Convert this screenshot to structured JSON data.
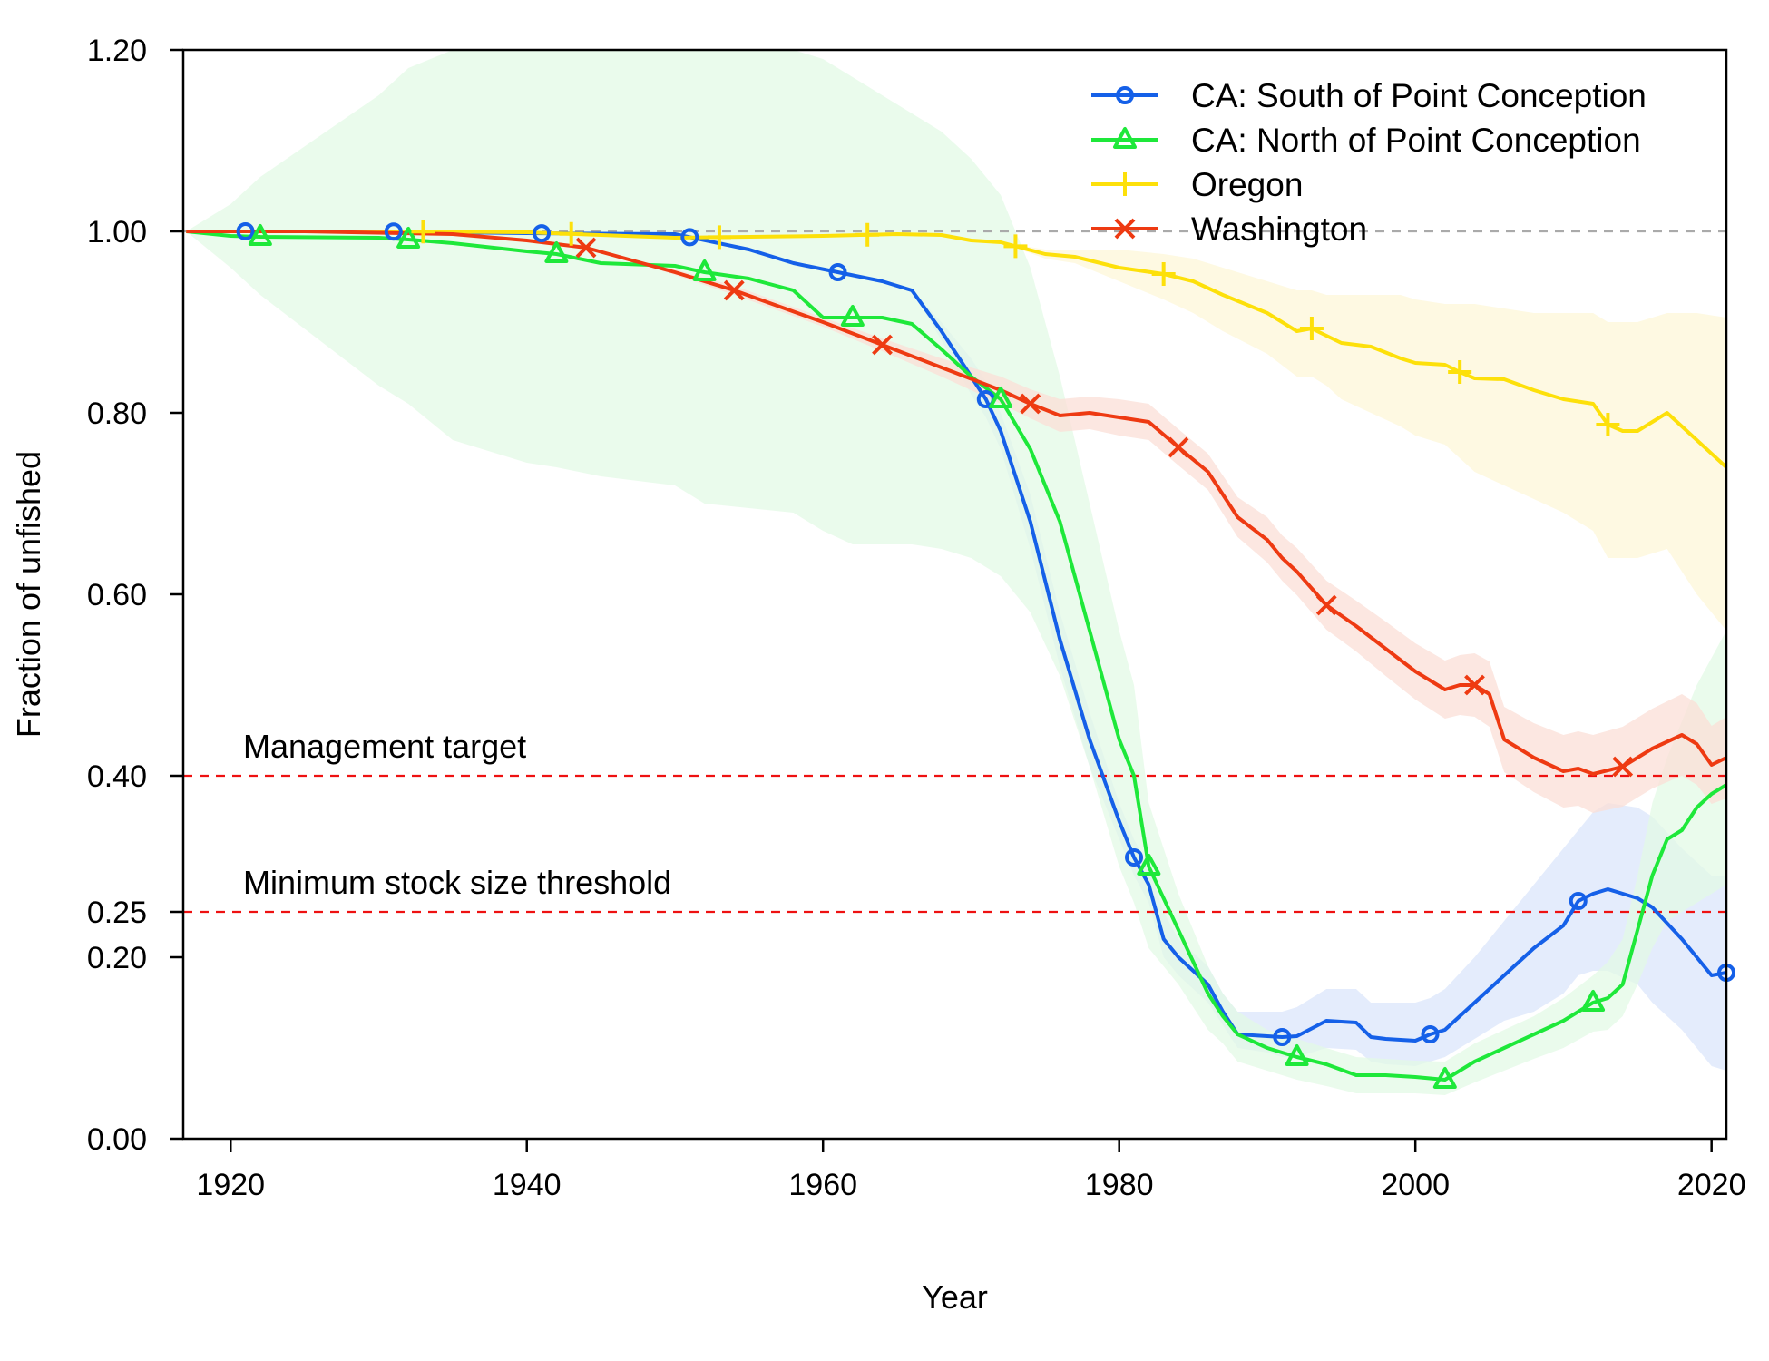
{
  "chart_data": {
    "type": "line",
    "title": "",
    "xlabel": "Year",
    "ylabel": "Fraction of unfished",
    "xlim": [
      1916.8,
      2021
    ],
    "ylim": [
      0,
      1.2
    ],
    "x_ticks": [
      1920,
      1940,
      1960,
      1980,
      2000,
      2020
    ],
    "x_tick_labels": [
      "1920",
      "1940",
      "1960",
      "1980",
      "2000",
      "2020"
    ],
    "y_ticks": [
      0,
      0.2,
      0.25,
      0.4,
      0.6,
      0.8,
      1.0,
      1.2
    ],
    "y_tick_labels": [
      "0.00",
      "0.20",
      "0.25",
      "0.40",
      "0.60",
      "0.80",
      "1.00",
      "1.20"
    ],
    "legend_position": "top-right",
    "reference_lines": [
      {
        "name": "unfished",
        "y": 1.0,
        "color": "#aaaaaa",
        "label": ""
      },
      {
        "name": "management-target",
        "y": 0.4,
        "color": "#ee1111",
        "label": "Management target"
      },
      {
        "name": "minimum-stock-size-threshold",
        "y": 0.25,
        "color": "#ee1111",
        "label": "Minimum stock size threshold"
      }
    ],
    "series": [
      {
        "name": "CA: South of Point Conception",
        "color": "#1560e8",
        "band_color": "#dbe6fb",
        "marker": "circle",
        "markers_x": [
          1921,
          1931,
          1941,
          1951,
          1961,
          1971,
          1981,
          1991,
          2001,
          2011,
          2021
        ],
        "x": [
          1917,
          1920,
          1930,
          1940,
          1950,
          1955,
          1958,
          1961,
          1964,
          1966,
          1968,
          1970,
          1971,
          1972,
          1974,
          1976,
          1978,
          1980,
          1981,
          1982,
          1983,
          1984,
          1986,
          1987,
          1988,
          1990,
          1991,
          1992,
          1994,
          1996,
          1997,
          1998,
          2000,
          2001,
          2002,
          2004,
          2006,
          2008,
          2010,
          2011,
          2012,
          2013,
          2015,
          2016,
          2018,
          2020,
          2021
        ],
        "y": [
          1.0,
          1.0,
          1.0,
          0.998,
          0.997,
          0.98,
          0.965,
          0.955,
          0.945,
          0.935,
          0.89,
          0.84,
          0.815,
          0.78,
          0.68,
          0.55,
          0.44,
          0.35,
          0.31,
          0.28,
          0.22,
          0.2,
          0.17,
          0.14,
          0.115,
          0.113,
          0.112,
          0.113,
          0.13,
          0.128,
          0.112,
          0.11,
          0.108,
          0.115,
          0.12,
          0.15,
          0.18,
          0.21,
          0.235,
          0.262,
          0.27,
          0.275,
          0.265,
          0.255,
          0.22,
          0.18,
          0.183
        ],
        "band_upper": [
          1.0,
          1.0,
          1.0,
          0.998,
          0.997,
          0.98,
          0.965,
          0.955,
          0.945,
          0.935,
          0.9,
          0.86,
          0.835,
          0.8,
          0.71,
          0.58,
          0.47,
          0.37,
          0.33,
          0.3,
          0.25,
          0.22,
          0.19,
          0.16,
          0.14,
          0.14,
          0.14,
          0.145,
          0.165,
          0.165,
          0.15,
          0.15,
          0.15,
          0.155,
          0.165,
          0.2,
          0.24,
          0.28,
          0.32,
          0.34,
          0.36,
          0.37,
          0.365,
          0.355,
          0.32,
          0.29,
          0.29
        ],
        "band_lower": [
          1.0,
          1.0,
          1.0,
          0.998,
          0.997,
          0.98,
          0.965,
          0.955,
          0.945,
          0.935,
          0.88,
          0.82,
          0.795,
          0.76,
          0.65,
          0.52,
          0.41,
          0.33,
          0.29,
          0.26,
          0.2,
          0.18,
          0.15,
          0.125,
          0.1,
          0.095,
          0.09,
          0.09,
          0.1,
          0.098,
          0.085,
          0.082,
          0.08,
          0.085,
          0.09,
          0.11,
          0.13,
          0.14,
          0.16,
          0.18,
          0.185,
          0.185,
          0.17,
          0.15,
          0.12,
          0.08,
          0.075
        ]
      },
      {
        "name": "CA: North of Point Conception",
        "color": "#1ee83a",
        "band_color": "#e3f9e6",
        "marker": "triangle",
        "markers_x": [
          1922,
          1932,
          1942,
          1952,
          1962,
          1972,
          1982,
          1992,
          2002,
          2012
        ],
        "x": [
          1917,
          1920,
          1922,
          1930,
          1932,
          1935,
          1940,
          1942,
          1945,
          1950,
          1952,
          1955,
          1958,
          1960,
          1962,
          1964,
          1966,
          1968,
          1970,
          1972,
          1974,
          1976,
          1978,
          1980,
          1981,
          1982,
          1984,
          1986,
          1987,
          1988,
          1990,
          1992,
          1994,
          1996,
          1998,
          2000,
          2002,
          2004,
          2006,
          2008,
          2010,
          2012,
          2013,
          2014,
          2015,
          2016,
          2017,
          2018,
          2019,
          2020,
          2021
        ],
        "y": [
          1.0,
          0.995,
          0.994,
          0.993,
          0.991,
          0.987,
          0.978,
          0.975,
          0.965,
          0.962,
          0.955,
          0.948,
          0.935,
          0.905,
          0.905,
          0.905,
          0.898,
          0.87,
          0.84,
          0.815,
          0.76,
          0.68,
          0.56,
          0.44,
          0.4,
          0.3,
          0.23,
          0.16,
          0.135,
          0.115,
          0.1,
          0.09,
          0.082,
          0.07,
          0.07,
          0.068,
          0.065,
          0.085,
          0.1,
          0.115,
          0.13,
          0.15,
          0.155,
          0.17,
          0.23,
          0.29,
          0.33,
          0.34,
          0.365,
          0.38,
          0.39
        ],
        "band_upper": [
          1.0,
          1.03,
          1.06,
          1.15,
          1.18,
          1.2,
          1.21,
          1.21,
          1.21,
          1.21,
          1.21,
          1.21,
          1.2,
          1.19,
          1.17,
          1.15,
          1.13,
          1.11,
          1.08,
          1.04,
          0.96,
          0.84,
          0.7,
          0.56,
          0.5,
          0.37,
          0.27,
          0.19,
          0.16,
          0.14,
          0.12,
          0.11,
          0.1,
          0.09,
          0.088,
          0.086,
          0.085,
          0.105,
          0.12,
          0.135,
          0.155,
          0.18,
          0.195,
          0.22,
          0.29,
          0.37,
          0.42,
          0.46,
          0.5,
          0.53,
          0.56
        ],
        "band_lower": [
          1.0,
          0.96,
          0.93,
          0.83,
          0.81,
          0.77,
          0.745,
          0.74,
          0.73,
          0.72,
          0.7,
          0.695,
          0.69,
          0.67,
          0.655,
          0.655,
          0.655,
          0.65,
          0.64,
          0.62,
          0.58,
          0.51,
          0.41,
          0.3,
          0.26,
          0.21,
          0.17,
          0.12,
          0.105,
          0.085,
          0.075,
          0.065,
          0.058,
          0.05,
          0.05,
          0.05,
          0.048,
          0.062,
          0.075,
          0.088,
          0.1,
          0.118,
          0.12,
          0.135,
          0.17,
          0.21,
          0.24,
          0.25,
          0.26,
          0.27,
          0.28
        ]
      },
      {
        "name": "Oregon",
        "color": "#fde00a",
        "band_color": "#fdf7d8",
        "marker": "plus",
        "markers_x": [
          1933,
          1943,
          1953,
          1963,
          1973,
          1983,
          1993,
          2003,
          2013
        ],
        "x": [
          1917,
          1925,
          1930,
          1940,
          1950,
          1960,
          1965,
          1968,
          1970,
          1972,
          1975,
          1977,
          1980,
          1983,
          1985,
          1987,
          1990,
          1992,
          1993,
          1994,
          1995,
          1997,
          1999,
          2000,
          2002,
          2003,
          2004,
          2006,
          2008,
          2010,
          2012,
          2013,
          2014,
          2015,
          2017,
          2019,
          2021
        ],
        "y": [
          1.0,
          1.0,
          1.0,
          0.999,
          0.993,
          0.995,
          0.997,
          0.996,
          0.99,
          0.988,
          0.975,
          0.972,
          0.96,
          0.953,
          0.945,
          0.93,
          0.91,
          0.89,
          0.893,
          0.885,
          0.877,
          0.873,
          0.86,
          0.855,
          0.853,
          0.845,
          0.838,
          0.837,
          0.825,
          0.815,
          0.81,
          0.787,
          0.78,
          0.78,
          0.8,
          0.77,
          0.74
        ],
        "band_upper": [
          1.0,
          1.0,
          1.0,
          0.999,
          0.993,
          0.995,
          0.997,
          0.996,
          0.99,
          0.988,
          0.98,
          0.98,
          0.98,
          0.975,
          0.97,
          0.96,
          0.945,
          0.935,
          0.935,
          0.93,
          0.93,
          0.93,
          0.93,
          0.925,
          0.92,
          0.92,
          0.92,
          0.915,
          0.91,
          0.91,
          0.91,
          0.9,
          0.9,
          0.9,
          0.91,
          0.91,
          0.905
        ],
        "band_lower": [
          1.0,
          1.0,
          1.0,
          0.999,
          0.993,
          0.995,
          0.997,
          0.996,
          0.99,
          0.988,
          0.97,
          0.965,
          0.945,
          0.925,
          0.91,
          0.89,
          0.865,
          0.84,
          0.84,
          0.83,
          0.815,
          0.8,
          0.785,
          0.775,
          0.765,
          0.75,
          0.735,
          0.72,
          0.705,
          0.69,
          0.67,
          0.64,
          0.64,
          0.64,
          0.65,
          0.6,
          0.56
        ]
      },
      {
        "name": "Washington",
        "color": "#ee3a12",
        "band_color": "#fbdfd7",
        "marker": "cross",
        "markers_x": [
          1944,
          1954,
          1964,
          1974,
          1984,
          1994,
          2004,
          2014
        ],
        "x": [
          1917,
          1925,
          1935,
          1940,
          1944,
          1950,
          1954,
          1960,
          1964,
          1968,
          1972,
          1974,
          1976,
          1978,
          1980,
          1982,
          1984,
          1986,
          1988,
          1990,
          1991,
          1992,
          1994,
          1996,
          1998,
          2000,
          2002,
          2003,
          2004,
          2005,
          2006,
          2008,
          2010,
          2011,
          2012,
          2014,
          2016,
          2018,
          2019,
          2020,
          2021
        ],
        "y": [
          1.0,
          1.0,
          0.997,
          0.99,
          0.982,
          0.955,
          0.935,
          0.9,
          0.875,
          0.85,
          0.825,
          0.81,
          0.797,
          0.8,
          0.795,
          0.79,
          0.762,
          0.735,
          0.685,
          0.66,
          0.64,
          0.625,
          0.588,
          0.565,
          0.54,
          0.515,
          0.495,
          0.5,
          0.5,
          0.49,
          0.44,
          0.42,
          0.405,
          0.408,
          0.402,
          0.41,
          0.43,
          0.445,
          0.435,
          0.412,
          0.42
        ],
        "band_upper": [
          1.0,
          1.0,
          0.997,
          0.99,
          0.982,
          0.958,
          0.94,
          0.905,
          0.882,
          0.86,
          0.84,
          0.826,
          0.815,
          0.818,
          0.815,
          0.81,
          0.782,
          0.755,
          0.707,
          0.685,
          0.665,
          0.651,
          0.615,
          0.593,
          0.57,
          0.546,
          0.527,
          0.533,
          0.535,
          0.526,
          0.476,
          0.458,
          0.445,
          0.449,
          0.445,
          0.454,
          0.474,
          0.49,
          0.48,
          0.455,
          0.465
        ],
        "band_lower": [
          1.0,
          1.0,
          0.997,
          0.99,
          0.982,
          0.952,
          0.93,
          0.895,
          0.868,
          0.84,
          0.81,
          0.794,
          0.779,
          0.782,
          0.775,
          0.77,
          0.742,
          0.715,
          0.663,
          0.635,
          0.615,
          0.599,
          0.561,
          0.537,
          0.51,
          0.484,
          0.463,
          0.467,
          0.465,
          0.454,
          0.404,
          0.382,
          0.365,
          0.367,
          0.359,
          0.366,
          0.386,
          0.4,
          0.39,
          0.369,
          0.375
        ]
      }
    ]
  }
}
